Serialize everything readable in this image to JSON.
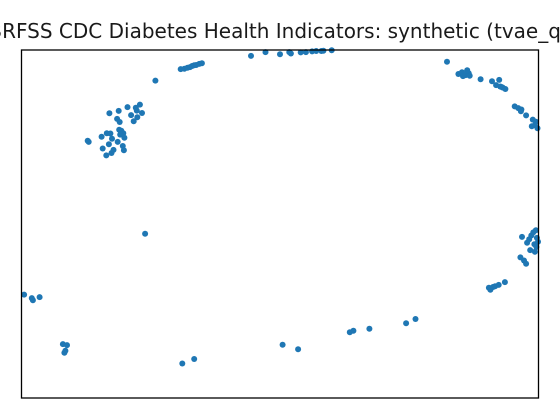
{
  "chart_data": {
    "type": "scatter",
    "title": "BRFSS CDC Diabetes Health Indicators: synthetic (tvae_qu",
    "xlabel": "",
    "ylabel": "",
    "xlim": [
      0,
      100
    ],
    "ylim": [
      0,
      100
    ],
    "grid": false,
    "axes_ticks": false,
    "color": "#1f77b4",
    "points": [
      [
        0.5,
        29.7
      ],
      [
        2.0,
        28.7
      ],
      [
        2.2,
        28.1
      ],
      [
        3.5,
        29.0
      ],
      [
        8.0,
        15.5
      ],
      [
        8.5,
        13.6
      ],
      [
        8.3,
        13.0
      ],
      [
        8.8,
        15.2
      ],
      [
        12.8,
        73.9
      ],
      [
        13.0,
        73.6
      ],
      [
        15.5,
        75.1
      ],
      [
        16.5,
        76.1
      ],
      [
        15.7,
        71.7
      ],
      [
        16.4,
        69.7
      ],
      [
        16.9,
        72.9
      ],
      [
        17.4,
        70.4
      ],
      [
        17.8,
        71.3
      ],
      [
        17.0,
        81.8
      ],
      [
        18.5,
        80.2
      ],
      [
        18.8,
        82.5
      ],
      [
        19.0,
        79.3
      ],
      [
        18.9,
        77.1
      ],
      [
        19.3,
        76.8
      ],
      [
        19.7,
        76.1
      ],
      [
        19.1,
        75.7
      ],
      [
        19.6,
        72.4
      ],
      [
        19.8,
        71.2
      ],
      [
        18.6,
        73.6
      ],
      [
        19.9,
        74.8
      ],
      [
        17.2,
        76.0
      ],
      [
        17.5,
        74.5
      ],
      [
        20.5,
        83.6
      ],
      [
        21.2,
        81.3
      ],
      [
        22.3,
        82.6
      ],
      [
        22.9,
        84.3
      ],
      [
        22.4,
        80.7
      ],
      [
        23.3,
        81.9
      ],
      [
        22.1,
        83.4
      ],
      [
        21.7,
        79.5
      ],
      [
        23.9,
        47.2
      ],
      [
        25.9,
        91.2
      ],
      [
        31.1,
        9.9
      ],
      [
        33.4,
        11.2
      ],
      [
        30.8,
        94.5
      ],
      [
        31.5,
        94.6
      ],
      [
        32.1,
        94.9
      ],
      [
        32.6,
        95.1
      ],
      [
        33.0,
        95.4
      ],
      [
        33.4,
        95.6
      ],
      [
        33.8,
        95.7
      ],
      [
        34.4,
        96.0
      ],
      [
        34.9,
        96.2
      ],
      [
        44.4,
        98.3
      ],
      [
        47.2,
        99.4
      ],
      [
        50.0,
        98.8
      ],
      [
        51.8,
        99.4
      ],
      [
        52.1,
        99.0
      ],
      [
        54.0,
        99.3
      ],
      [
        55.0,
        99.4
      ],
      [
        56.2,
        99.6
      ],
      [
        57.0,
        99.7
      ],
      [
        58.0,
        99.7
      ],
      [
        58.4,
        99.8
      ],
      [
        60.0,
        99.9
      ],
      [
        50.5,
        15.3
      ],
      [
        53.5,
        14.0
      ],
      [
        63.5,
        18.9
      ],
      [
        64.2,
        19.3
      ],
      [
        67.3,
        19.9
      ],
      [
        74.4,
        21.5
      ],
      [
        76.2,
        22.7
      ],
      [
        82.3,
        96.6
      ],
      [
        84.5,
        93.1
      ],
      [
        85.2,
        93.6
      ],
      [
        85.4,
        92.5
      ],
      [
        85.9,
        92.8
      ],
      [
        86.5,
        93.3
      ],
      [
        86.2,
        94.2
      ],
      [
        86.7,
        92.6
      ],
      [
        88.8,
        91.6
      ],
      [
        91.0,
        91.0
      ],
      [
        91.8,
        89.9
      ],
      [
        92.6,
        89.5
      ],
      [
        92.8,
        89.4
      ],
      [
        93.1,
        89.2
      ],
      [
        93.6,
        88.8
      ],
      [
        92.4,
        91.4
      ],
      [
        95.4,
        83.8
      ],
      [
        96.1,
        83.3
      ],
      [
        96.7,
        82.9
      ],
      [
        96.6,
        82.4
      ],
      [
        97.6,
        81.2
      ],
      [
        98.9,
        80.0
      ],
      [
        99.5,
        79.4
      ],
      [
        99.3,
        78.4
      ],
      [
        99.8,
        77.5
      ],
      [
        98.7,
        78.1
      ],
      [
        90.4,
        31.7
      ],
      [
        90.7,
        31.1
      ],
      [
        91.2,
        31.9
      ],
      [
        91.6,
        32.1
      ],
      [
        92.3,
        32.5
      ],
      [
        93.5,
        33.3
      ],
      [
        96.5,
        40.4
      ],
      [
        97.2,
        39.5
      ],
      [
        97.6,
        38.6
      ],
      [
        96.8,
        46.3
      ],
      [
        97.8,
        44.6
      ],
      [
        98.2,
        45.6
      ],
      [
        98.6,
        46.7
      ],
      [
        99.0,
        47.6
      ],
      [
        99.5,
        48.2
      ],
      [
        99.7,
        46.0
      ],
      [
        99.2,
        44.2
      ],
      [
        98.4,
        42.5
      ],
      [
        99.6,
        43.4
      ],
      [
        99.9,
        44.9
      ],
      [
        99.3,
        42.0
      ]
    ]
  }
}
